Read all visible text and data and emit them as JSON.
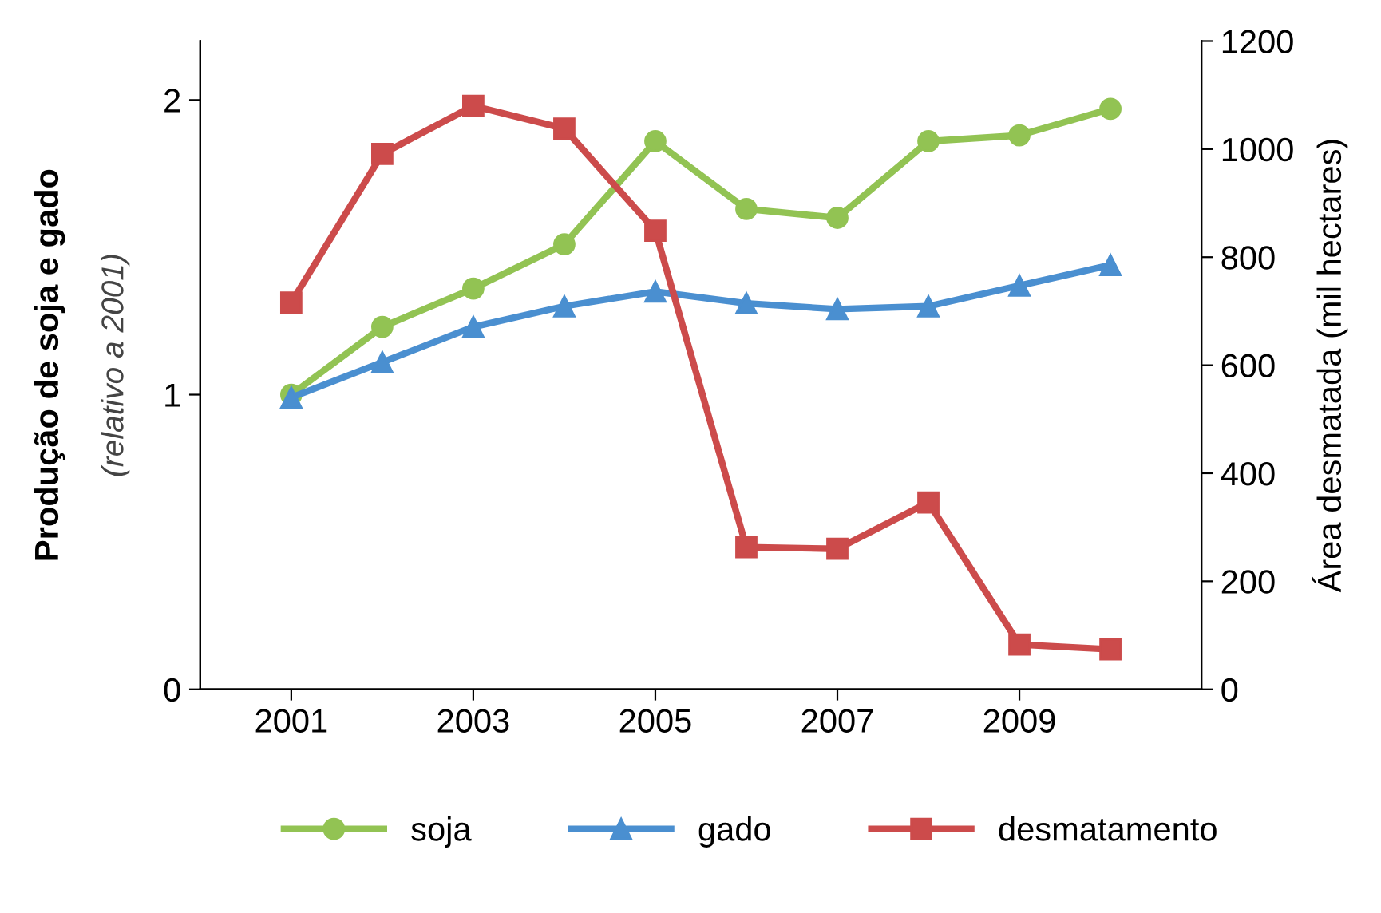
{
  "chart_data": {
    "type": "line",
    "x": [
      2001,
      2002,
      2003,
      2004,
      2005,
      2006,
      2007,
      2008,
      2009,
      2010
    ],
    "series": [
      {
        "name": "soja",
        "color": "#92c353",
        "marker": "circle",
        "values": [
          1.0,
          1.23,
          1.36,
          1.51,
          1.86,
          1.63,
          1.6,
          1.86,
          1.88,
          1.97
        ]
      },
      {
        "name": "gado",
        "color": "#4a8fd0",
        "marker": "triangle",
        "values": [
          0.99,
          1.11,
          1.23,
          1.3,
          1.35,
          1.31,
          1.29,
          1.3,
          1.37,
          1.44
        ]
      },
      {
        "name": "desmatamento",
        "color": "#cc4b4b",
        "marker": "square",
        "axis": "y2",
        "values": [
          716,
          991,
          1080,
          1038,
          849,
          263,
          260,
          346,
          83,
          74
        ]
      }
    ],
    "ylabel": "Produção de soja e gado",
    "annotations": [
      "(relativo a 2001)"
    ],
    "y2label": "Área desmatada (mil hectares)",
    "xlim": [
      2000,
      2011
    ],
    "xticks": [
      2001,
      2003,
      2005,
      2007,
      2009
    ],
    "ylim": [
      0,
      2.2
    ],
    "yticks": [
      0,
      1,
      2
    ],
    "y2lim": [
      0,
      1200
    ],
    "y2ticks": [
      0,
      200,
      400,
      600,
      800,
      1000,
      1200
    ],
    "grid": false,
    "legend": "bottom",
    "line_style": "solid"
  }
}
